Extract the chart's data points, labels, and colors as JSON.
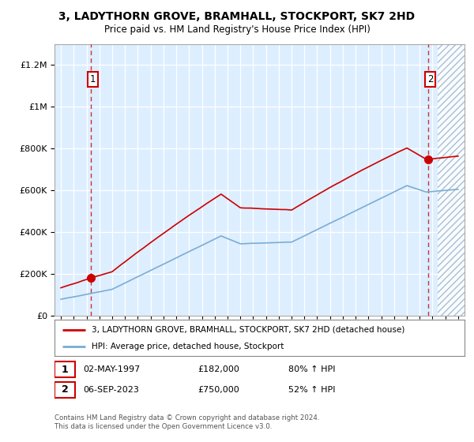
{
  "title": "3, LADYTHORN GROVE, BRAMHALL, STOCKPORT, SK7 2HD",
  "subtitle": "Price paid vs. HM Land Registry's House Price Index (HPI)",
  "sale1_date": "02-MAY-1997",
  "sale1_price": 182000,
  "sale1_label": "1",
  "sale1_year": 1997.33,
  "sale2_date": "06-SEP-2023",
  "sale2_price": 750000,
  "sale2_label": "2",
  "sale2_year": 2023.67,
  "legend_line1": "3, LADYTHORN GROVE, BRAMHALL, STOCKPORT, SK7 2HD (detached house)",
  "legend_line2": "HPI: Average price, detached house, Stockport",
  "footer": "Contains HM Land Registry data © Crown copyright and database right 2024.\nThis data is licensed under the Open Government Licence v3.0.",
  "hpi_color": "#7aadd4",
  "price_color": "#cc0000",
  "background_color": "#ddeeff",
  "ylim": [
    0,
    1300000
  ],
  "xlim_start": 1994.5,
  "xlim_end": 2026.5,
  "hatch_start": 2024.42
}
